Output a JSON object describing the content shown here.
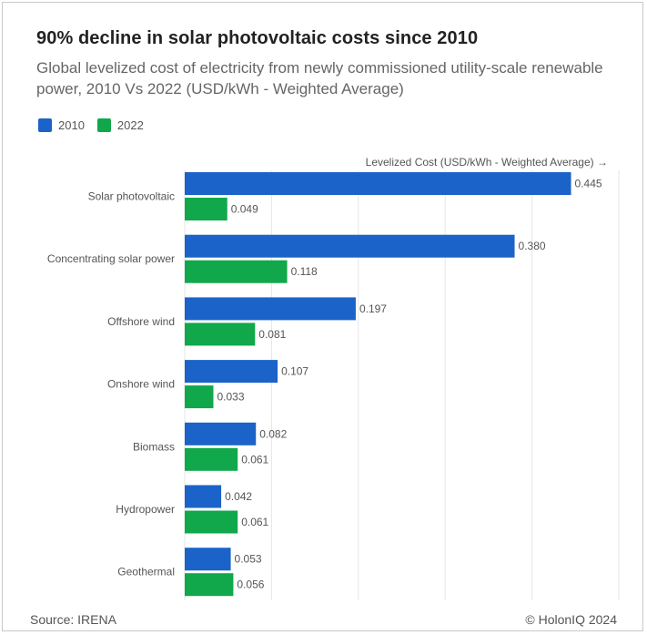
{
  "header": {
    "title": "90% decline in solar photovoltaic costs since 2010",
    "subtitle": "Global levelized cost of electricity from newly commissioned utility-scale renewable power, 2010 Vs 2022 (USD/kWh - Weighted Average)"
  },
  "footer": {
    "source": "Source: IRENA",
    "credit": "© HolonIQ 2024"
  },
  "colors": {
    "series_2010": "#1b63c8",
    "series_2022": "#10a84a",
    "gridline": "#e6e6e6",
    "label_text": "#555555"
  },
  "chart_data": {
    "type": "bar",
    "orientation": "horizontal",
    "title": "90% decline in solar photovoltaic costs since 2010",
    "xlabel": "Levelized Cost (USD/kWh - Weighted Average) →",
    "xlim": [
      0,
      0.5
    ],
    "grid": true,
    "legend_position": "top-left",
    "categories": [
      "Solar photovoltaic",
      "Concentrating solar power",
      "Offshore wind",
      "Onshore wind",
      "Biomass",
      "Hydropower",
      "Geothermal"
    ],
    "series": [
      {
        "name": "2010",
        "values": [
          0.445,
          0.38,
          0.197,
          0.107,
          0.082,
          0.042,
          0.053
        ]
      },
      {
        "name": "2022",
        "values": [
          0.049,
          0.118,
          0.081,
          0.033,
          0.061,
          0.061,
          0.056
        ]
      }
    ]
  }
}
